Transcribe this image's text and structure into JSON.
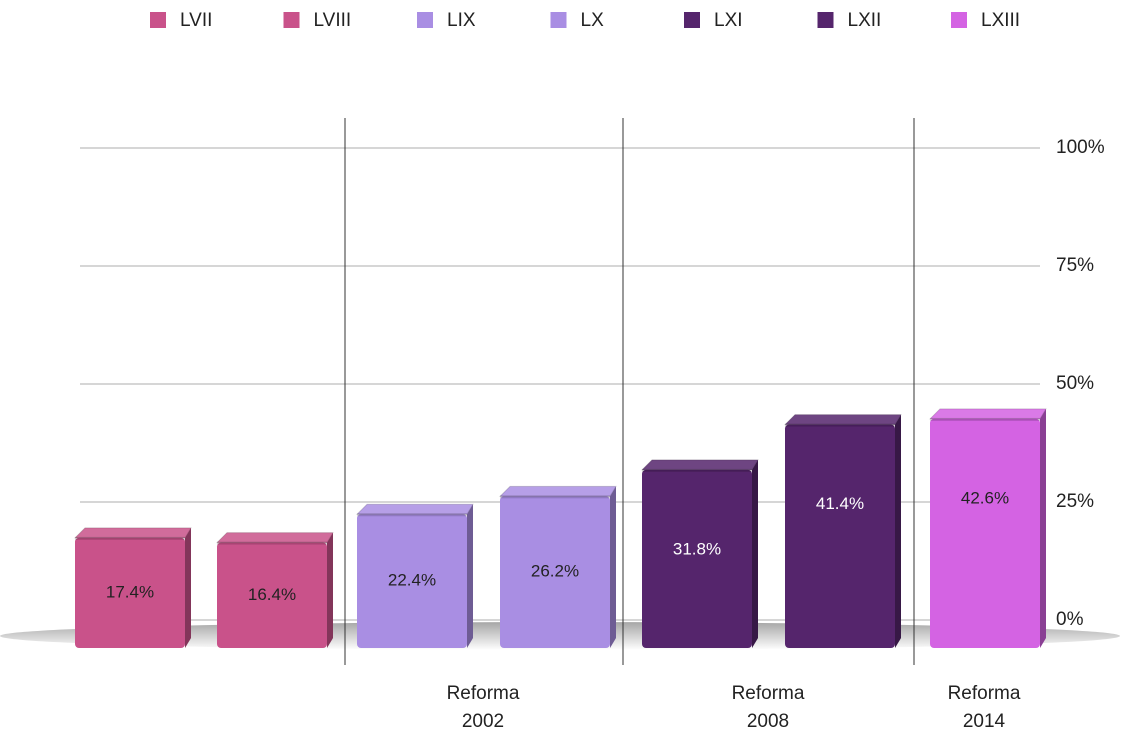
{
  "chart_data": {
    "type": "bar",
    "series": [
      {
        "name": "LVII",
        "color": "#c9528a",
        "values": [
          17.4
        ],
        "value_labels": [
          "17.4%"
        ]
      },
      {
        "name": "LVIII",
        "color": "#c9528a",
        "values": [
          16.4
        ],
        "value_labels": [
          "16.4%"
        ]
      },
      {
        "name": "LIX",
        "color": "#a98ee3",
        "values": [
          22.4
        ],
        "value_labels": [
          "22.4%"
        ]
      },
      {
        "name": "LX",
        "color": "#a98ee3",
        "values": [
          26.2
        ],
        "value_labels": [
          "26.2%"
        ]
      },
      {
        "name": "LXI",
        "color": "#55256c",
        "values": [
          31.8
        ],
        "value_labels": [
          "31.8%"
        ]
      },
      {
        "name": "LXII",
        "color": "#55256c",
        "values": [
          41.4
        ],
        "value_labels": [
          "41.4%"
        ]
      },
      {
        "name": "LXIII",
        "color": "#d463e3",
        "values": [
          42.6
        ],
        "value_labels": [
          "42.6%"
        ]
      }
    ],
    "ylim": [
      0,
      100
    ],
    "yticks": [
      {
        "value": 0,
        "label": "0%"
      },
      {
        "value": 25,
        "label": "25%"
      },
      {
        "value": 50,
        "label": "50%"
      },
      {
        "value": 75,
        "label": "75%"
      },
      {
        "value": 100,
        "label": "100%"
      }
    ],
    "grid": true,
    "legend": "top",
    "annotations": [
      {
        "lines": [
          "Reforma",
          "2002"
        ]
      },
      {
        "lines": [
          "Reforma",
          "2008"
        ]
      },
      {
        "lines": [
          "Reforma",
          "2014"
        ]
      }
    ]
  }
}
